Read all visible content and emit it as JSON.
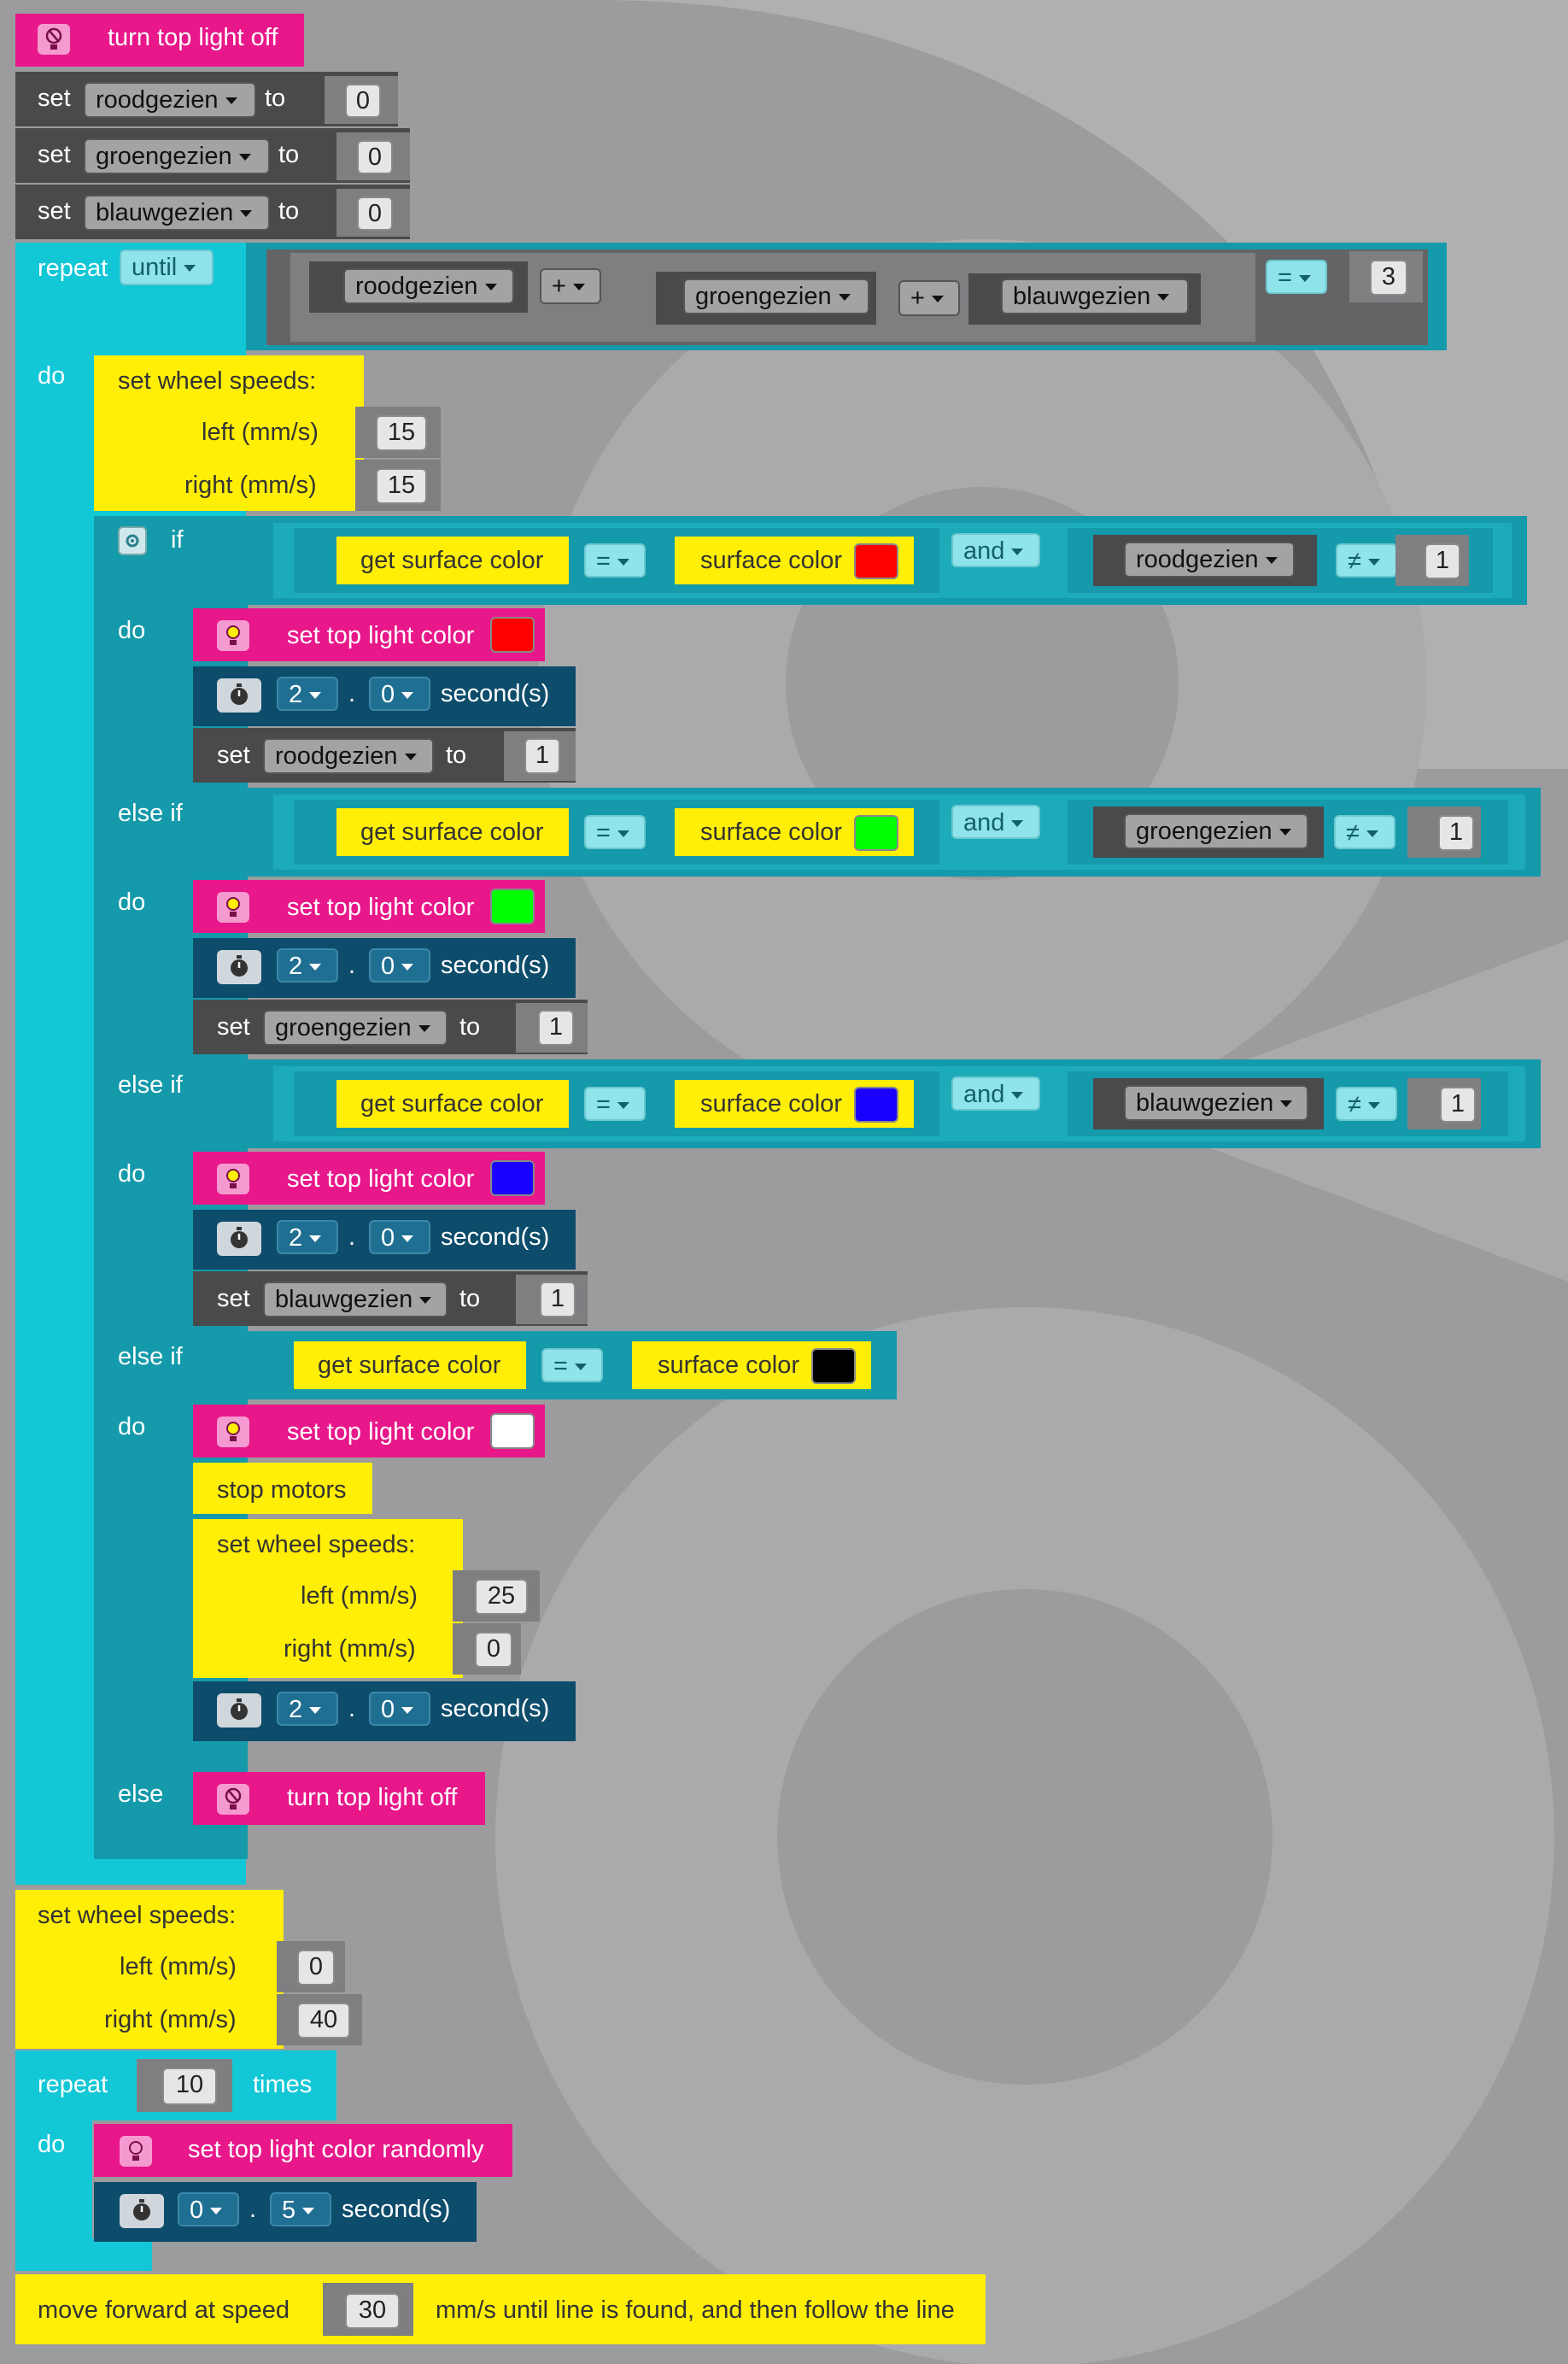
{
  "blocks": {
    "turn_off_1": "turn top light off",
    "set_word": "set",
    "to_word": "to",
    "vars": [
      "roodgezien",
      "groengezien",
      "blauwgezien"
    ],
    "zero": "0",
    "repeat": "repeat",
    "until": "until",
    "plus": "+",
    "eq": "=",
    "neq": "≠",
    "three": "3",
    "do": "do",
    "if": "if",
    "else_if": "else if",
    "else": "else",
    "and": "and",
    "one": "1",
    "set_wheel_speeds": "set wheel speeds:",
    "left": "left (mm/s)",
    "right": "right (mm/s)",
    "speed_15": "15",
    "get_surface_color": "get surface color",
    "surface_color": "surface color",
    "set_top_light_color": "set top light color",
    "seconds": "second(s)",
    "two": "2",
    "dot": ".",
    "stop_motors": "stop motors",
    "speed_25": "25",
    "turn_off_2": "turn top light off",
    "speed_40": "40",
    "ten": "10",
    "times": "times",
    "random_color": "set top light color randomly",
    "five": "5",
    "move_forward": "move forward at speed",
    "speed_30": "30",
    "follow_line": "mm/s until line is found, and then follow the line"
  },
  "colors": {
    "red": "#ff0000",
    "green": "#00ff00",
    "blue": "#1a00ff",
    "black": "#000000",
    "white": "#ffffff",
    "pink": "#e8178a",
    "yellow": "#ffee05",
    "cyan": "#12c7d6",
    "teal": "#149aaa",
    "navy": "#0d4c6b"
  },
  "icons": [
    "light-off-icon",
    "lightbulb-icon",
    "stopwatch-icon",
    "gear-icon",
    "dropdown-arrow-icon"
  ]
}
